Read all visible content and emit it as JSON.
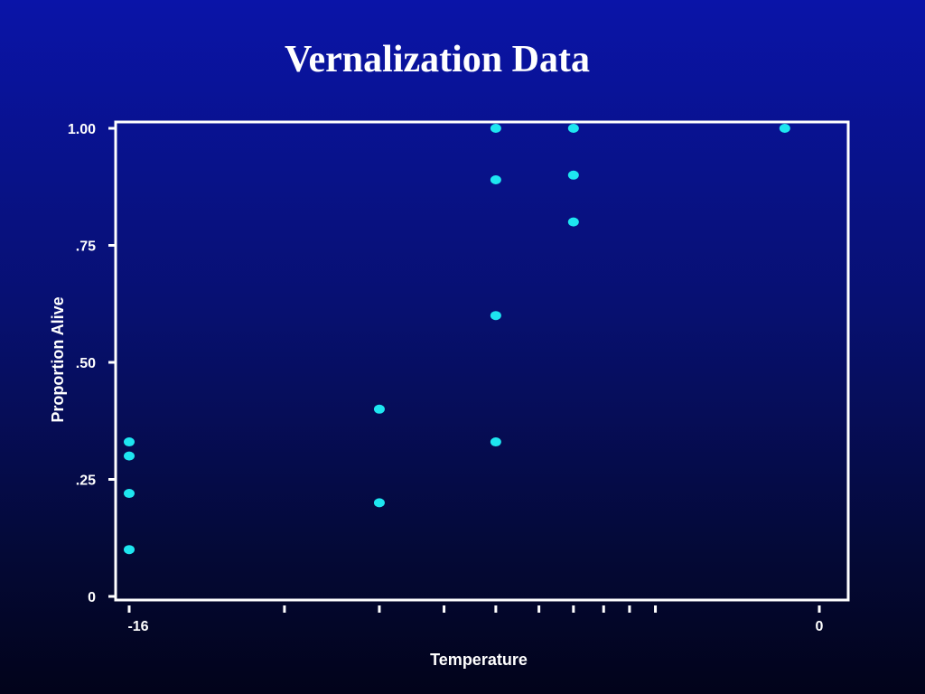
{
  "slide": {
    "title": "Vernalization Data"
  },
  "colors": {
    "background_top": "#0a14a8",
    "background_bottom": "#02031a",
    "axes": "#ffffff",
    "points": "#1ee6f0"
  },
  "chart_data": {
    "type": "scatter",
    "title": "Vernalization Data",
    "xlabel": "Temperature",
    "ylabel": "Proportion Alive",
    "xlim": [
      -16,
      0
    ],
    "ylim": [
      0,
      1
    ],
    "grid": false,
    "yticks": [
      {
        "value": 0,
        "label": "0"
      },
      {
        "value": 0.25,
        "label": ".25"
      },
      {
        "value": 0.5,
        "label": ".50"
      },
      {
        "value": 0.75,
        "label": ".75"
      },
      {
        "value": 1.0,
        "label": "1.00"
      }
    ],
    "xticks": [
      {
        "value": -16,
        "label": "-16"
      },
      {
        "value": -12.4,
        "label": ""
      },
      {
        "value": -10.2,
        "label": ""
      },
      {
        "value": -8.7,
        "label": ""
      },
      {
        "value": -7.5,
        "label": ""
      },
      {
        "value": -6.5,
        "label": ""
      },
      {
        "value": -5.7,
        "label": ""
      },
      {
        "value": -5.0,
        "label": ""
      },
      {
        "value": -4.4,
        "label": ""
      },
      {
        "value": -3.8,
        "label": ""
      },
      {
        "value": 0,
        "label": "0"
      }
    ],
    "points": [
      {
        "x": -16,
        "y": 0.33
      },
      {
        "x": -16,
        "y": 0.3
      },
      {
        "x": -16,
        "y": 0.22
      },
      {
        "x": -16,
        "y": 0.1
      },
      {
        "x": -10.2,
        "y": 0.4
      },
      {
        "x": -10.2,
        "y": 0.2
      },
      {
        "x": -7.5,
        "y": 1.0
      },
      {
        "x": -7.5,
        "y": 0.89
      },
      {
        "x": -7.5,
        "y": 0.6
      },
      {
        "x": -7.5,
        "y": 0.33
      },
      {
        "x": -5.7,
        "y": 1.0
      },
      {
        "x": -5.7,
        "y": 0.9
      },
      {
        "x": -5.7,
        "y": 0.8
      },
      {
        "x": -0.8,
        "y": 1.0
      }
    ]
  }
}
